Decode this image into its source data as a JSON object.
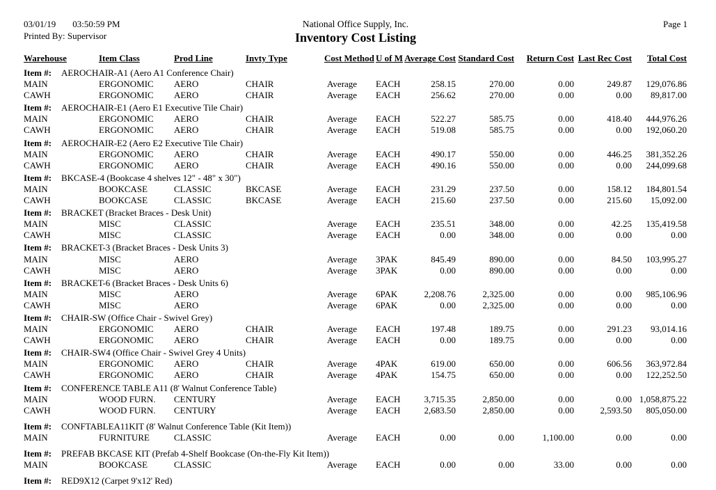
{
  "header": {
    "date": "03/01/19",
    "time": "03:50:59 PM",
    "printed_by_label": "Printed By:",
    "printed_by": "Supervisor",
    "company": "National Office Supply, Inc.",
    "title": "Inventory Cost Listing",
    "page_label": "Page 1"
  },
  "table": {
    "item_label": "Item #:",
    "columns": [
      "Warehouse",
      "Item Class",
      "Prod Line",
      "Invty Type",
      "Cost Method",
      "U of M",
      "Average Cost",
      "Standard Cost",
      "Return Cost",
      "Last Rec Cost",
      "Total Cost"
    ],
    "groups": [
      {
        "item": "AEROCHAIR-A1 (Aero A1 Conference Chair)",
        "rows": [
          [
            "MAIN",
            "ERGONOMIC",
            "AERO",
            "CHAIR",
            "Average",
            "EACH",
            "258.15",
            "270.00",
            "0.00",
            "249.87",
            "129,076.86"
          ],
          [
            "CAWH",
            "ERGONOMIC",
            "AERO",
            "CHAIR",
            "Average",
            "EACH",
            "256.62",
            "270.00",
            "0.00",
            "0.00",
            "89,817.00"
          ]
        ]
      },
      {
        "item": "AEROCHAIR-E1 (Aero E1 Executive Tile Chair)",
        "rows": [
          [
            "MAIN",
            "ERGONOMIC",
            "AERO",
            "CHAIR",
            "Average",
            "EACH",
            "522.27",
            "585.75",
            "0.00",
            "418.40",
            "444,976.26"
          ],
          [
            "CAWH",
            "ERGONOMIC",
            "AERO",
            "CHAIR",
            "Average",
            "EACH",
            "519.08",
            "585.75",
            "0.00",
            "0.00",
            "192,060.20"
          ]
        ]
      },
      {
        "item": "AEROCHAIR-E2 (Aero E2 Executive Tile Chair)",
        "rows": [
          [
            "MAIN",
            "ERGONOMIC",
            "AERO",
            "CHAIR",
            "Average",
            "EACH",
            "490.17",
            "550.00",
            "0.00",
            "446.25",
            "381,352.26"
          ],
          [
            "CAWH",
            "ERGONOMIC",
            "AERO",
            "CHAIR",
            "Average",
            "EACH",
            "490.16",
            "550.00",
            "0.00",
            "0.00",
            "244,099.68"
          ]
        ]
      },
      {
        "item": "BKCASE-4 (Bookcase 4 shelves 12\" - 48\" x 30\")",
        "rows": [
          [
            "MAIN",
            "BOOKCASE",
            "CLASSIC",
            "BKCASE",
            "Average",
            "EACH",
            "231.29",
            "237.50",
            "0.00",
            "158.12",
            "184,801.54"
          ],
          [
            "CAWH",
            "BOOKCASE",
            "CLASSIC",
            "BKCASE",
            "Average",
            "EACH",
            "215.60",
            "237.50",
            "0.00",
            "215.60",
            "15,092.00"
          ]
        ]
      },
      {
        "item": "BRACKET (Bracket Braces - Desk Unit)",
        "rows": [
          [
            "MAIN",
            "MISC",
            "CLASSIC",
            "",
            "Average",
            "EACH",
            "235.51",
            "348.00",
            "0.00",
            "42.25",
            "135,419.58"
          ],
          [
            "CAWH",
            "MISC",
            "CLASSIC",
            "",
            "Average",
            "EACH",
            "0.00",
            "348.00",
            "0.00",
            "0.00",
            "0.00"
          ]
        ]
      },
      {
        "item": "BRACKET-3 (Bracket Braces - Desk Units 3)",
        "rows": [
          [
            "MAIN",
            "MISC",
            "AERO",
            "",
            "Average",
            "3PAK",
            "845.49",
            "890.00",
            "0.00",
            "84.50",
            "103,995.27"
          ],
          [
            "CAWH",
            "MISC",
            "AERO",
            "",
            "Average",
            "3PAK",
            "0.00",
            "890.00",
            "0.00",
            "0.00",
            "0.00"
          ]
        ]
      },
      {
        "item": "BRACKET-6 (Bracket Braces - Desk Units 6)",
        "rows": [
          [
            "MAIN",
            "MISC",
            "AERO",
            "",
            "Average",
            "6PAK",
            "2,208.76",
            "2,325.00",
            "0.00",
            "0.00",
            "985,106.96"
          ],
          [
            "CAWH",
            "MISC",
            "AERO",
            "",
            "Average",
            "6PAK",
            "0.00",
            "2,325.00",
            "0.00",
            "0.00",
            "0.00"
          ]
        ]
      },
      {
        "item": "CHAIR-SW (Office Chair - Swivel Grey)",
        "rows": [
          [
            "MAIN",
            "ERGONOMIC",
            "AERO",
            "CHAIR",
            "Average",
            "EACH",
            "197.48",
            "189.75",
            "0.00",
            "291.23",
            "93,014.16"
          ],
          [
            "CAWH",
            "ERGONOMIC",
            "AERO",
            "CHAIR",
            "Average",
            "EACH",
            "0.00",
            "189.75",
            "0.00",
            "0.00",
            "0.00"
          ]
        ]
      },
      {
        "item": "CHAIR-SW4 (Office Chair - Swivel Grey 4 Units)",
        "rows": [
          [
            "MAIN",
            "ERGONOMIC",
            "AERO",
            "CHAIR",
            "Average",
            "4PAK",
            "619.00",
            "650.00",
            "0.00",
            "606.56",
            "363,972.84"
          ],
          [
            "CAWH",
            "ERGONOMIC",
            "AERO",
            "CHAIR",
            "Average",
            "4PAK",
            "154.75",
            "650.00",
            "0.00",
            "0.00",
            "122,252.50"
          ]
        ]
      },
      {
        "item": "CONFERENCE TABLE A11 (8' Walnut Conference Table)",
        "rows": [
          [
            "MAIN",
            "WOOD FURN.",
            "CENTURY",
            "",
            "Average",
            "EACH",
            "3,715.35",
            "2,850.00",
            "0.00",
            "0.00",
            "1,058,875.22"
          ],
          [
            "CAWH",
            "WOOD FURN.",
            "CENTURY",
            "",
            "Average",
            "EACH",
            "2,683.50",
            "2,850.00",
            "0.00",
            "2,593.50",
            "805,050.00"
          ]
        ]
      },
      {
        "item": "CONFTABLEA11KIT (8' Walnut Conference Table (Kit Item))",
        "rows": [
          [
            "MAIN",
            "FURNITURE",
            "CLASSIC",
            "",
            "Average",
            "EACH",
            "0.00",
            "0.00",
            "1,100.00",
            "0.00",
            "0.00"
          ]
        ]
      },
      {
        "item": "PREFAB BKCASE KIT (Prefab 4-Shelf Bookcase (On-the-Fly Kit Item))",
        "rows": [
          [
            "MAIN",
            "BOOKCASE",
            "CLASSIC",
            "",
            "Average",
            "EACH",
            "0.00",
            "0.00",
            "33.00",
            "0.00",
            "0.00"
          ]
        ]
      },
      {
        "item": "RED9X12 (Carpet 9'x12' Red)",
        "rows": []
      }
    ]
  }
}
